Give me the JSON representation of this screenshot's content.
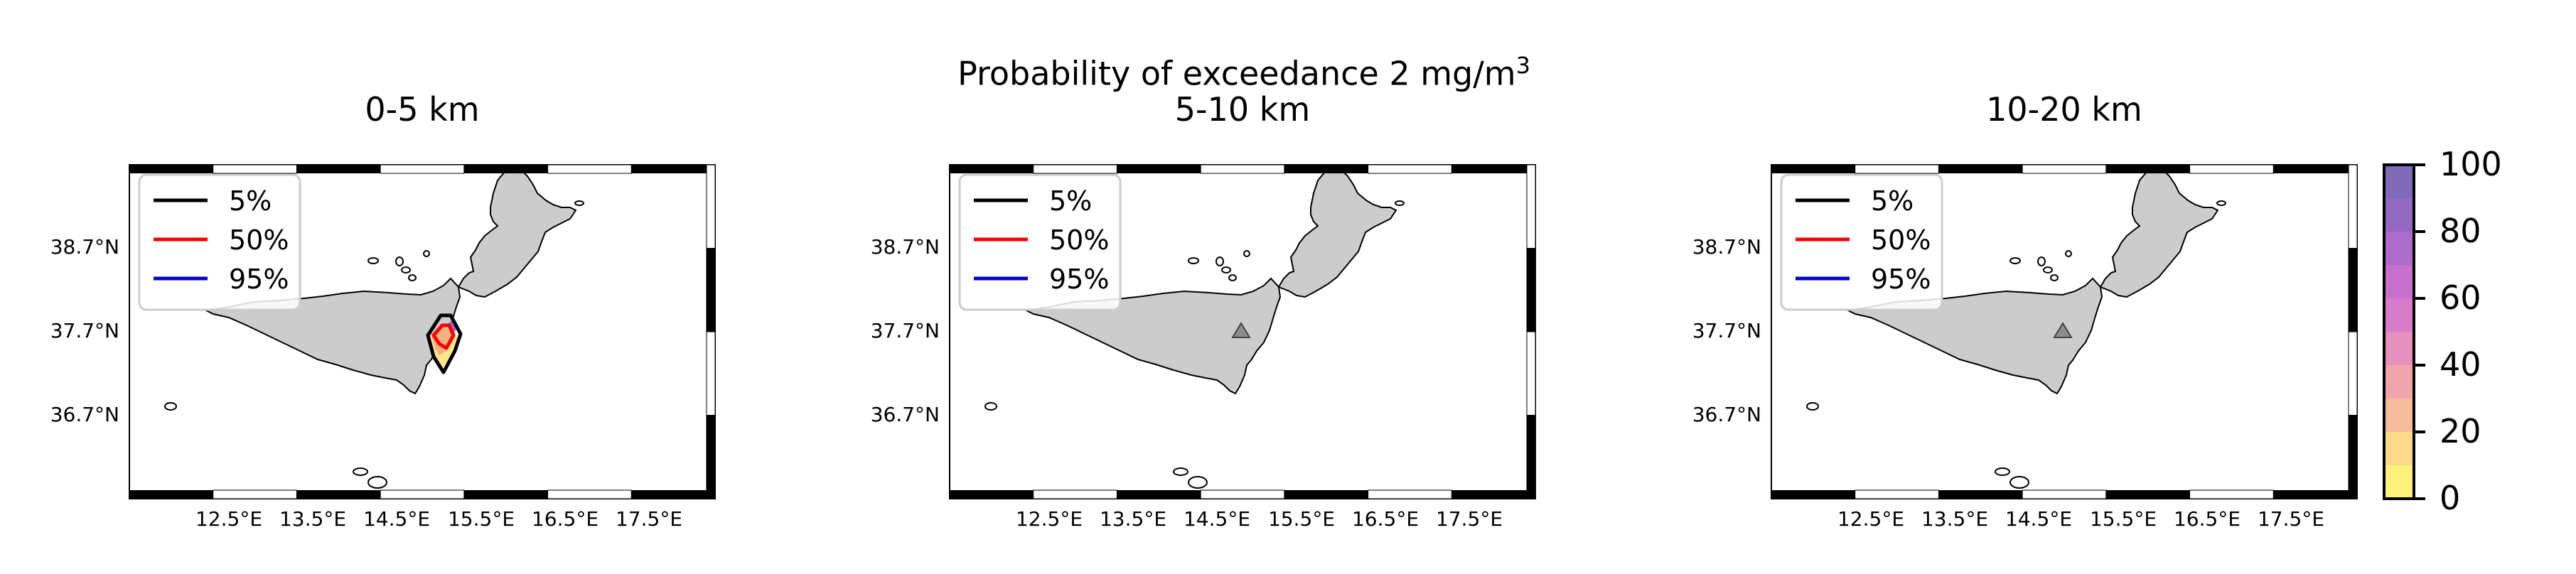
{
  "figure": {
    "suptitle": "Probability of exceedance 2 mg/m",
    "suptitle_sup": "3"
  },
  "panels": [
    {
      "title": "0-5 km",
      "show_plume": true,
      "show_volcano": false
    },
    {
      "title": "5-10 km",
      "show_plume": false,
      "show_volcano": true
    },
    {
      "title": "10-20 km",
      "show_plume": false,
      "show_volcano": true
    }
  ],
  "legend": [
    {
      "label": "5%",
      "color": "#000000"
    },
    {
      "label": "50%",
      "color": "#ff0000"
    },
    {
      "label": "95%",
      "color": "#0000cc"
    }
  ],
  "axes": {
    "x_ticks": [
      "12.5°E",
      "13.5°E",
      "14.5°E",
      "15.5°E",
      "16.5°E",
      "17.5°E"
    ],
    "y_ticks": [
      "38.7°N",
      "37.7°N",
      "36.7°N"
    ]
  },
  "colorbar": {
    "ticks": [
      "100",
      "80",
      "60",
      "40",
      "20",
      "0"
    ],
    "colors": [
      "#fff27a",
      "#fcd98a",
      "#f6bc9c",
      "#f0a5ad",
      "#e590bd",
      "#d87bc8",
      "#c672cd",
      "#ad6ccc",
      "#9369c4",
      "#7f6ab8"
    ]
  },
  "colors": {
    "land": "#cccccc",
    "coast": "#000000",
    "volcano": "#555555"
  }
}
